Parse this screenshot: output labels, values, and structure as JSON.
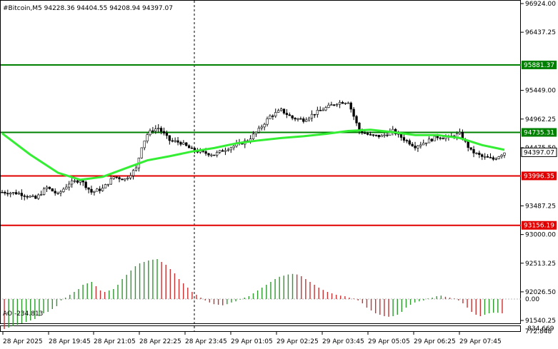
{
  "header": {
    "label": "#Bitcoin,M5  94228.36 94404.55 94208.94 94397.07"
  },
  "ao_header": {
    "label": "AO -234.813"
  },
  "price_axis": {
    "ticks": [
      "96924.00",
      "96437.25",
      "95449.00",
      "94962.25",
      "94475.50",
      "93487.25",
      "93000.00",
      "92513.25",
      "92026.50",
      "91540.25"
    ]
  },
  "levels": [
    {
      "name": "resistance-2",
      "price": 95881.37,
      "label": "95881.37",
      "color": "#008000"
    },
    {
      "name": "resistance-1",
      "price": 94735.31,
      "label": "94735.31",
      "color": "#008000"
    },
    {
      "name": "support-1",
      "price": 93996.35,
      "label": "93996.35",
      "color": "#e00000"
    },
    {
      "name": "support-2",
      "price": 93156.19,
      "label": "93156.19",
      "color": "#e00000"
    }
  ],
  "current_price": {
    "price": 94397.07,
    "label": "94397.07"
  },
  "ao_axis": {
    "ticks": [
      "772.848",
      "0.00",
      "-834.669"
    ]
  },
  "time_axis": {
    "labels": [
      "28 Apr 2025",
      "28 Apr 19:45",
      "28 Apr 21:05",
      "28 Apr 22:25",
      "28 Apr 23:45",
      "29 Apr 01:05",
      "29 Apr 02:25",
      "29 Apr 03:45",
      "29 Apr 05:05",
      "29 Apr 06:25",
      "29 Apr 07:45"
    ]
  },
  "colors": {
    "candle": "#000000",
    "ma": "#33ee33",
    "ao_up": "#2e9a2e",
    "ao_down": "#c83232",
    "crosshair": "#000000"
  },
  "chart_data": {
    "type": "candlestick",
    "symbol": "#Bitcoin",
    "timeframe": "M5",
    "ohlc_last": {
      "open": 94228.36,
      "high": 94404.55,
      "low": 94208.94,
      "close": 94397.07
    },
    "close_path": [
      [
        0,
        93720
      ],
      [
        6,
        93700
      ],
      [
        12,
        93610
      ],
      [
        16,
        93800
      ],
      [
        20,
        93680
      ],
      [
        24,
        93870
      ],
      [
        28,
        93930
      ],
      [
        32,
        93720
      ],
      [
        36,
        93780
      ],
      [
        40,
        93980
      ],
      [
        44,
        93940
      ],
      [
        48,
        94120
      ],
      [
        50,
        94500
      ],
      [
        52,
        94700
      ],
      [
        54,
        94780
      ],
      [
        56,
        94810
      ],
      [
        60,
        94600
      ],
      [
        64,
        94560
      ],
      [
        68,
        94440
      ],
      [
        72,
        94390
      ],
      [
        76,
        94360
      ],
      [
        80,
        94450
      ],
      [
        84,
        94520
      ],
      [
        88,
        94600
      ],
      [
        92,
        94780
      ],
      [
        96,
        95010
      ],
      [
        100,
        95110
      ],
      [
        104,
        94980
      ],
      [
        108,
        94950
      ],
      [
        112,
        95060
      ],
      [
        116,
        95150
      ],
      [
        120,
        95240
      ],
      [
        124,
        95260
      ],
      [
        128,
        94760
      ],
      [
        132,
        94680
      ],
      [
        136,
        94670
      ],
      [
        140,
        94760
      ],
      [
        144,
        94620
      ],
      [
        148,
        94500
      ],
      [
        152,
        94580
      ],
      [
        156,
        94660
      ],
      [
        160,
        94650
      ],
      [
        164,
        94710
      ],
      [
        168,
        94420
      ],
      [
        172,
        94320
      ],
      [
        176,
        94280
      ],
      [
        180,
        94397
      ]
    ],
    "ma_path": [
      [
        0,
        94720
      ],
      [
        10,
        94360
      ],
      [
        20,
        94050
      ],
      [
        28,
        93930
      ],
      [
        36,
        93980
      ],
      [
        44,
        94120
      ],
      [
        52,
        94260
      ],
      [
        60,
        94330
      ],
      [
        68,
        94410
      ],
      [
        76,
        94470
      ],
      [
        84,
        94550
      ],
      [
        92,
        94600
      ],
      [
        100,
        94640
      ],
      [
        108,
        94670
      ],
      [
        116,
        94710
      ],
      [
        124,
        94760
      ],
      [
        132,
        94780
      ],
      [
        140,
        94740
      ],
      [
        148,
        94690
      ],
      [
        156,
        94690
      ],
      [
        164,
        94640
      ],
      [
        172,
        94520
      ],
      [
        180,
        94440
      ]
    ],
    "ao": [
      -1.05,
      -1.0,
      -0.95,
      -0.9,
      -0.85,
      -0.8,
      -0.75,
      -0.7,
      -0.6,
      -0.5,
      -0.45,
      -0.35,
      -0.25,
      -0.05,
      0.05,
      0.15,
      0.25,
      0.35,
      0.5,
      0.55,
      0.6,
      0.45,
      0.3,
      0.25,
      0.3,
      0.35,
      0.5,
      0.7,
      0.85,
      1.0,
      1.15,
      1.25,
      1.3,
      1.35,
      1.38,
      1.4,
      1.3,
      1.2,
      1.05,
      0.9,
      0.7,
      0.55,
      0.4,
      0.25,
      0.15,
      0.05,
      -0.05,
      -0.12,
      -0.18,
      -0.2,
      -0.22,
      -0.18,
      -0.12,
      -0.08,
      -0.02,
      0.05,
      0.1,
      0.2,
      0.3,
      0.4,
      0.5,
      0.6,
      0.7,
      0.78,
      0.82,
      0.86,
      0.88,
      0.86,
      0.8,
      0.7,
      0.6,
      0.5,
      0.4,
      0.32,
      0.25,
      0.2,
      0.15,
      0.12,
      0.1,
      0.05,
      0.02,
      -0.05,
      -0.15,
      -0.3,
      -0.4,
      -0.5,
      -0.55,
      -0.6,
      -0.62,
      -0.6,
      -0.55,
      -0.45,
      -0.3,
      -0.2,
      -0.12,
      -0.08,
      -0.05,
      0.02,
      0.05,
      0.1,
      0.12,
      0.08,
      0.05,
      0.02,
      -0.05,
      -0.15,
      -0.3,
      -0.45,
      -0.55,
      -0.6,
      -0.55,
      -0.5,
      -0.48,
      -0.48,
      -0.5
    ]
  }
}
